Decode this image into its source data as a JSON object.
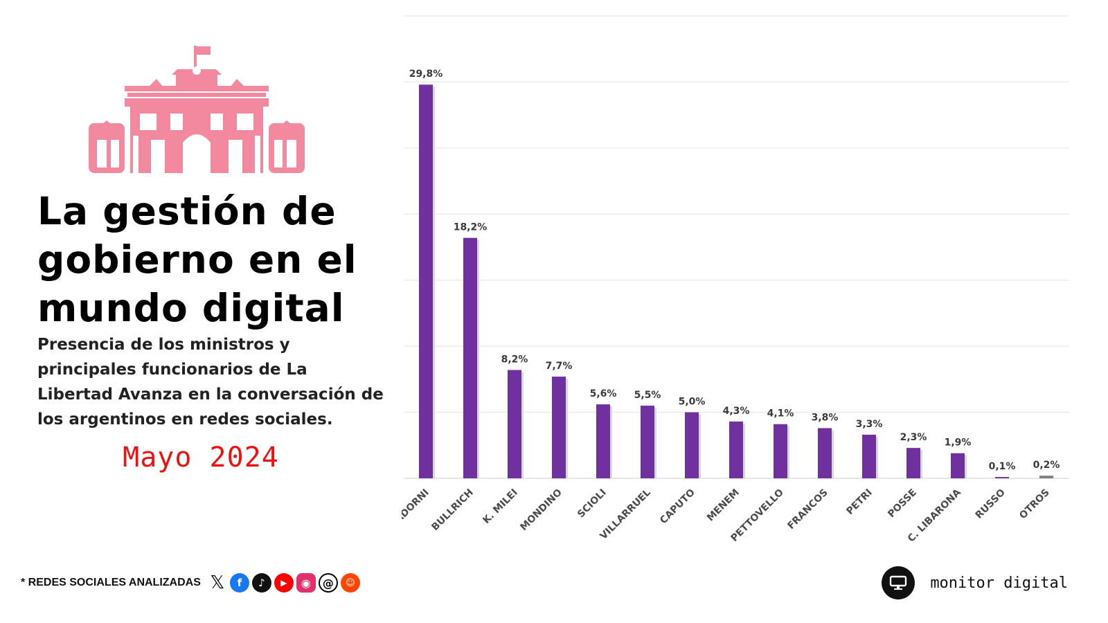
{
  "header": {
    "title": "La gestión de gobierno en el mundo digital",
    "subtitle": "Presencia de los ministros y principales funcionarios de La Libertad Avanza en la conversación de los argentinos en redes sociales.",
    "period": "Mayo  2024"
  },
  "footer": {
    "networks_label": "* REDES SOCIALES ANALIZADAS",
    "brand": "monitor digital"
  },
  "social_icons": [
    "x-icon",
    "facebook-icon",
    "tiktok-icon",
    "youtube-icon",
    "instagram-icon",
    "threads-icon",
    "reddit-icon"
  ],
  "colors": {
    "accent": "#f2899e",
    "period": "#ee1111",
    "bar": "#7030a0",
    "bar_other": "#808080"
  },
  "chart_data": {
    "type": "bar",
    "title": "",
    "xlabel": "",
    "ylabel": "",
    "categories": [
      "ADORNI",
      "BULLRICH",
      "K. MILEI",
      "MONDINO",
      "SCIOLI",
      "VILLARRUEL",
      "CAPUTO",
      "MENEM",
      "PETTOVELLO",
      "FRANCOS",
      "PETRI",
      "POSSE",
      "C. LIBARONA",
      "RUSSO",
      "OTROS"
    ],
    "values": [
      29.8,
      18.2,
      8.2,
      7.7,
      5.6,
      5.5,
      5.0,
      4.3,
      4.1,
      3.8,
      3.3,
      2.3,
      1.9,
      0.1,
      0.2
    ],
    "labels": [
      "29,8%",
      "18,2%",
      "8,2%",
      "7,7%",
      "5,6%",
      "5,5%",
      "5,0%",
      "4,3%",
      "4,1%",
      "3,8%",
      "3,3%",
      "2,3%",
      "1,9%",
      "0,1%",
      "0,2%"
    ],
    "ylim": [
      0,
      35
    ],
    "grid_step": 5,
    "grid": true,
    "legend": "none"
  }
}
